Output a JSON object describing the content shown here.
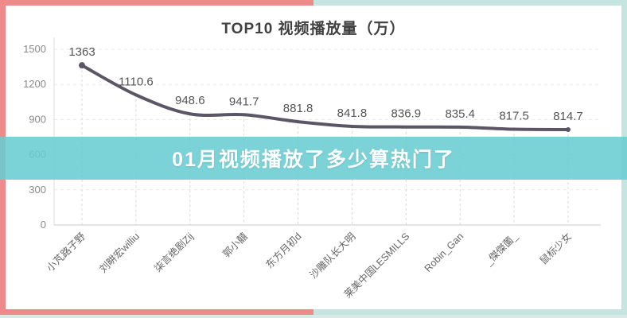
{
  "frame": {
    "left_color": "#ef8a8b",
    "right_color": "#c6e5e0",
    "outer_strip_color": "#d9e9e6"
  },
  "overlay": {
    "text": "01月视频播放了多少算热门了",
    "band_color": "rgba(103,204,209,0.87)",
    "text_color": "#ffffff"
  },
  "chart_data": {
    "type": "line",
    "title": "TOP10 视频播放量（万）",
    "categories": [
      "小芃路子野",
      "刘畊宏williu",
      "柒言绝剧Zij",
      "郭小囍",
      "东方月初d",
      "沙雕队长大明",
      "莱美中国LESMILLS",
      "Robin_Gan",
      "_傑傑薗_",
      "鼠标少女"
    ],
    "values": [
      1363,
      1110.6,
      948.6,
      941.7,
      881.8,
      841.8,
      836.9,
      835.4,
      817.5,
      814.7
    ],
    "value_labels": [
      "1363",
      "1110.6",
      "948.6",
      "941.7",
      "881.8",
      "841.8",
      "836.9",
      "835.4",
      "817.5",
      "814.7"
    ],
    "y_ticks": [
      0,
      300,
      600,
      900,
      1200,
      1500
    ],
    "ylim": [
      0,
      1500
    ],
    "xlabel": "",
    "ylabel": "",
    "legend": "none",
    "grid": "dashed",
    "line_color": "#5b5666",
    "tick_color": "#8a8a8a",
    "label_color": "#555555"
  }
}
